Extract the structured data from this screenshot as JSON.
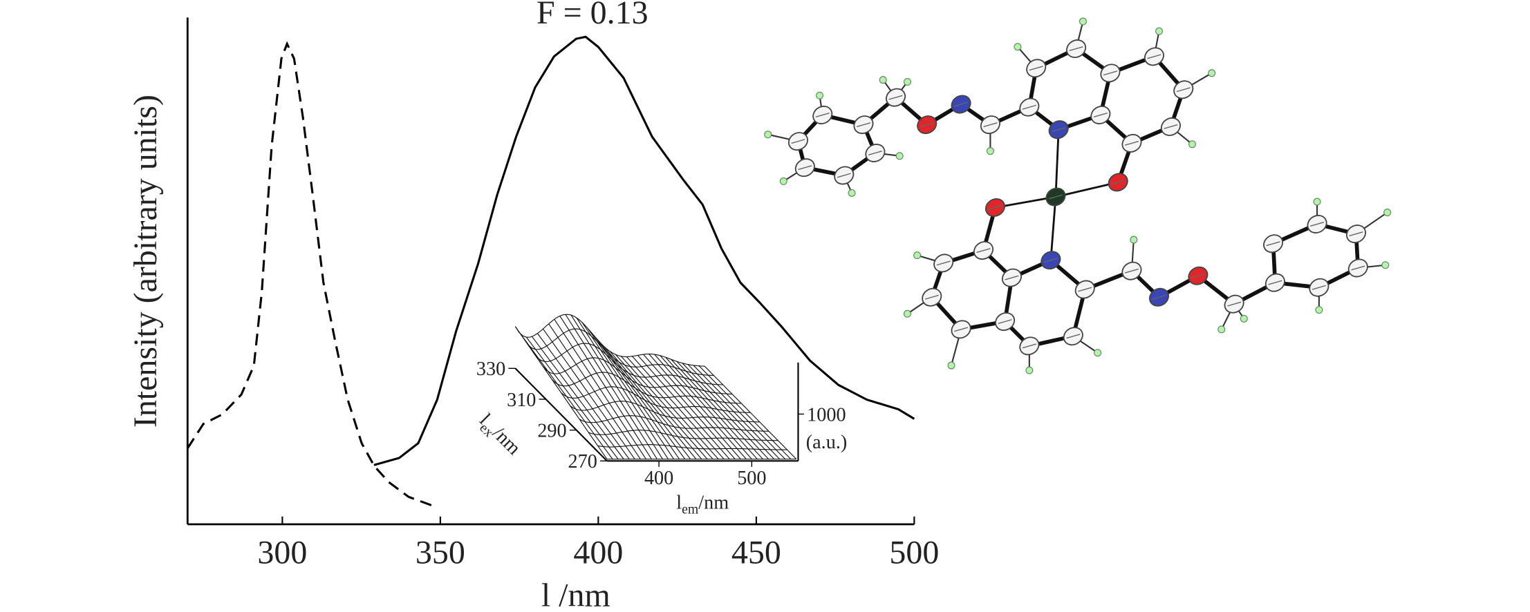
{
  "chart_data": [
    {
      "type": "line",
      "annotation": "F = 0.13",
      "x_label": "l /nm",
      "y_label": "Intensity (arbitrary units)",
      "xlim": [
        270,
        500
      ],
      "ylim": [
        0,
        100
      ],
      "xticks": [
        300,
        350,
        400,
        450,
        500
      ],
      "series": [
        {
          "color": "#000000",
          "dash": true,
          "x": [
            270,
            275,
            281,
            287,
            291,
            293.5,
            296.6,
            299.7,
            301.5,
            303.7,
            306.5,
            309.6,
            313,
            316.7,
            320.7,
            325.1,
            329.1,
            333.7,
            340,
            348.3
          ],
          "values": [
            15,
            19.8,
            21.7,
            25.6,
            31.3,
            45.8,
            74.6,
            91.9,
            94.8,
            91.9,
            80.4,
            65,
            47.7,
            36.2,
            24.6,
            16,
            11.5,
            8.3,
            5.4,
            3.5
          ]
        },
        {
          "color": "#000000",
          "dash": false,
          "x": [
            329,
            337,
            343,
            349,
            355,
            362,
            368,
            374,
            380,
            386,
            393,
            396,
            400,
            408,
            417,
            427,
            433,
            439,
            445,
            451,
            458,
            467,
            476,
            485,
            495,
            500
          ],
          "values": [
            11.7,
            13.1,
            16,
            24.6,
            38.1,
            51.5,
            65,
            76.5,
            86.2,
            92.3,
            95.8,
            96.2,
            94.2,
            88.1,
            76.5,
            67.9,
            63.1,
            54.4,
            47.7,
            43.8,
            39,
            32.3,
            27.5,
            24.6,
            22.7,
            20.8
          ]
        }
      ]
    },
    {
      "type": "surface",
      "xlim": [
        344,
        550
      ],
      "xticks": [
        400,
        500
      ],
      "ylim": [
        270,
        330
      ],
      "yticks": [
        270,
        290,
        310,
        330
      ],
      "zlim": [
        0,
        2100
      ],
      "zticks": [
        1000
      ],
      "x_label": [
        "l",
        "em",
        "/nm"
      ],
      "y_label": [
        "l",
        "ex",
        "/nm"
      ],
      "z_label": "(a.u.)"
    }
  ]
}
